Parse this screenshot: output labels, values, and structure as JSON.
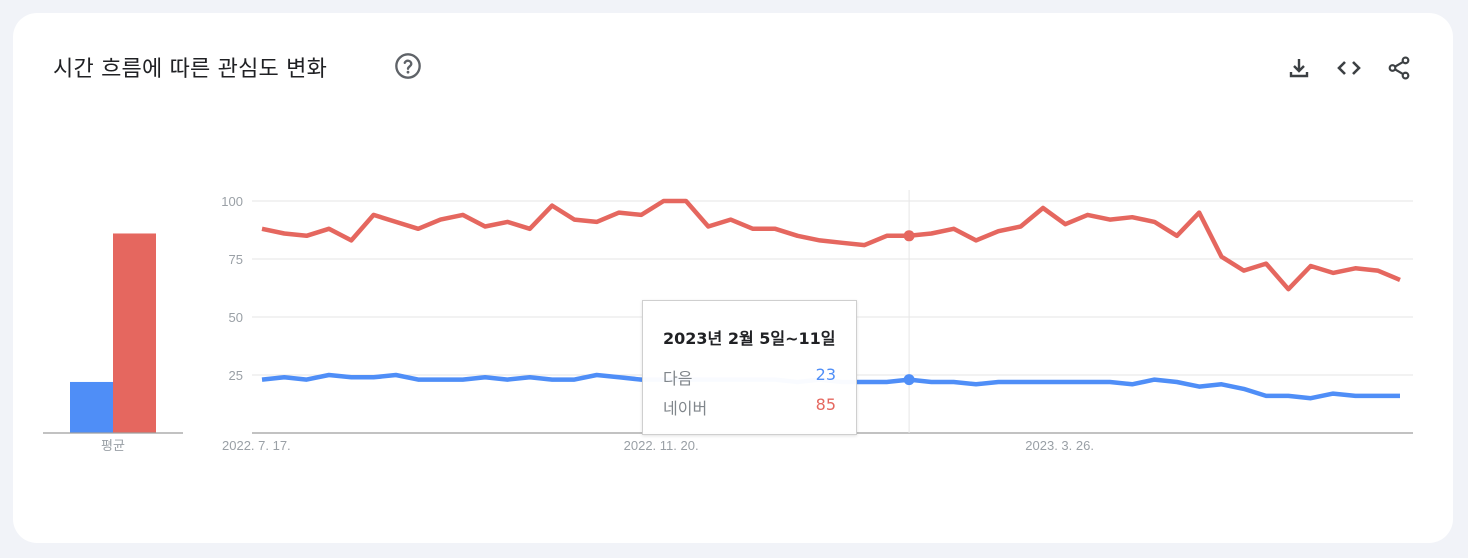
{
  "header": {
    "title": "시간 흐름에 따른 관심도 변화",
    "help_icon": "help-circle-icon",
    "actions": [
      {
        "name": "download",
        "icon": "download-icon"
      },
      {
        "name": "embed",
        "icon": "code-icon"
      },
      {
        "name": "share",
        "icon": "share-icon"
      }
    ]
  },
  "colors": {
    "daum": "#4f8ef7",
    "naver": "#e5675f",
    "grid": "#e6e6e6",
    "background": "#f1f3f8"
  },
  "average_panel": {
    "label": "평균",
    "values": [
      {
        "series": "다음",
        "value": 22
      },
      {
        "series": "네이버",
        "value": 86
      }
    ]
  },
  "tooltip": {
    "date": "2023년 2월 5일~11일",
    "rows": [
      {
        "name": "다음",
        "value": "23"
      },
      {
        "name": "네이버",
        "value": "85"
      }
    ]
  },
  "chart_data": {
    "type": "line",
    "title": "시간 흐름에 따른 관심도 변화",
    "xlabel": "",
    "ylabel": "",
    "ylim": [
      0,
      100
    ],
    "yticks": [
      25,
      50,
      75,
      100
    ],
    "grid": true,
    "xtick_labels": [
      "2022. 7. 17.",
      "2022. 11. 20.",
      "2023. 3. 26."
    ],
    "x_start": "2022-07-17",
    "x_interval": "weekly",
    "highlight_index": 29,
    "series": [
      {
        "name": "다음",
        "color": "#4f8ef7",
        "average": 22,
        "values": [
          23,
          24,
          23,
          25,
          24,
          24,
          25,
          23,
          23,
          23,
          24,
          23,
          24,
          23,
          23,
          25,
          24,
          23,
          23,
          23,
          23,
          23,
          23,
          23,
          22,
          23,
          22,
          22,
          22,
          23,
          22,
          22,
          21,
          22,
          22,
          22,
          22,
          22,
          22,
          21,
          23,
          22,
          20,
          21,
          19,
          16,
          16,
          15,
          17,
          16,
          16,
          16
        ]
      },
      {
        "name": "네이버",
        "color": "#e5675f",
        "average": 86,
        "values": [
          88,
          86,
          85,
          88,
          83,
          94,
          91,
          88,
          92,
          94,
          89,
          91,
          88,
          98,
          92,
          91,
          95,
          94,
          100,
          100,
          89,
          92,
          88,
          88,
          85,
          83,
          82,
          81,
          85,
          85,
          86,
          88,
          83,
          87,
          89,
          97,
          90,
          94,
          92,
          93,
          91,
          85,
          95,
          76,
          70,
          73,
          62,
          72,
          69,
          71,
          70,
          66
        ]
      }
    ]
  }
}
